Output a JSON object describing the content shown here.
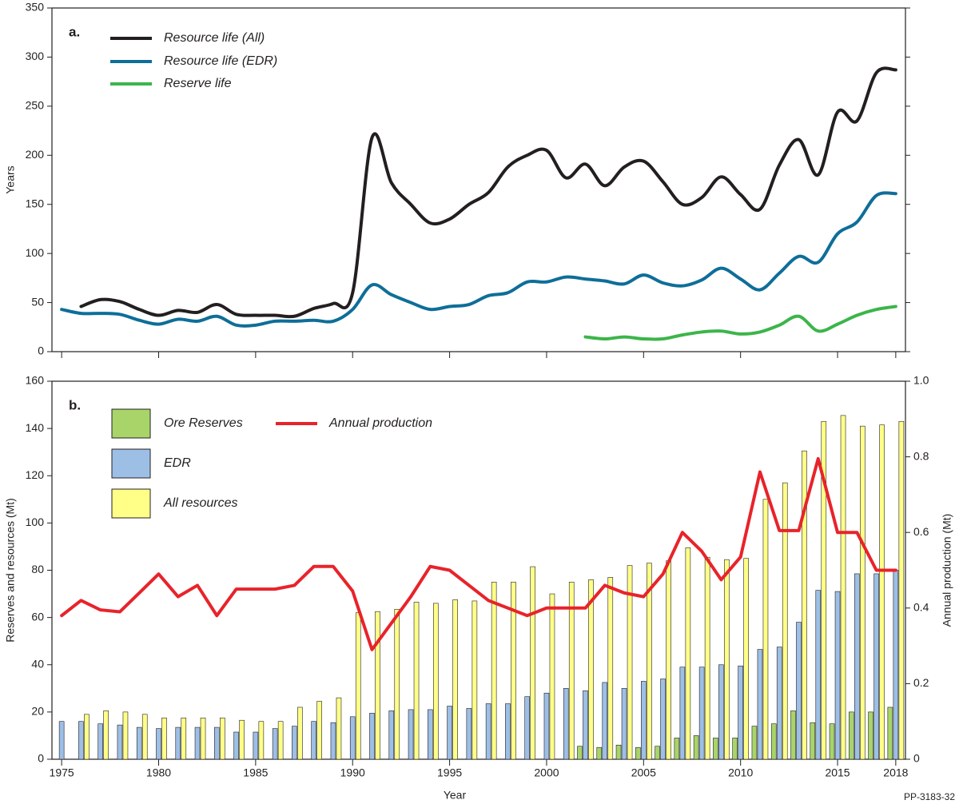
{
  "chart_data": [
    {
      "type": "line",
      "title": "a.",
      "ylabel": "Years",
      "x": [
        1975,
        1976,
        1977,
        1978,
        1979,
        1980,
        1981,
        1982,
        1983,
        1984,
        1985,
        1986,
        1987,
        1988,
        1989,
        1990,
        1991,
        1992,
        1993,
        1994,
        1995,
        1996,
        1997,
        1998,
        1999,
        2000,
        2001,
        2002,
        2003,
        2004,
        2005,
        2006,
        2007,
        2008,
        2009,
        2010,
        2011,
        2012,
        2013,
        2014,
        2015,
        2016,
        2017,
        2018
      ],
      "xlim": [
        1974.5,
        2018.5
      ],
      "ylim": [
        0,
        350
      ],
      "yticks": [
        0,
        50,
        100,
        150,
        200,
        250,
        300,
        350
      ],
      "series": [
        {
          "name": "Resource life (All)",
          "color": "#231f20",
          "values": [
            null,
            46,
            53,
            51,
            43,
            37,
            42,
            40,
            48,
            38,
            37,
            37,
            36,
            44,
            49,
            60,
            218,
            172,
            150,
            131,
            135,
            150,
            162,
            188,
            200,
            205,
            177,
            191,
            169,
            188,
            194,
            173,
            150,
            157,
            178,
            160,
            145,
            190,
            216,
            180,
            244,
            235,
            284,
            287
          ]
        },
        {
          "name": "Resource life (EDR)",
          "color": "#0e6e99",
          "values": [
            43,
            39,
            39,
            38,
            32,
            28,
            33,
            31,
            36,
            27,
            27,
            31,
            31,
            32,
            31,
            43,
            68,
            58,
            50,
            43,
            46,
            48,
            57,
            60,
            71,
            71,
            76,
            74,
            72,
            69,
            78,
            70,
            67,
            73,
            85,
            74,
            63,
            80,
            97,
            91,
            120,
            132,
            159,
            161
          ]
        },
        {
          "name": "Reserve life",
          "color": "#3cb54a",
          "values": [
            null,
            null,
            null,
            null,
            null,
            null,
            null,
            null,
            null,
            null,
            null,
            null,
            null,
            null,
            null,
            null,
            null,
            null,
            null,
            null,
            null,
            null,
            null,
            null,
            null,
            null,
            null,
            15,
            13,
            15,
            13,
            13,
            17,
            20,
            21,
            18,
            20,
            27,
            36,
            21,
            28,
            37,
            43,
            46
          ]
        }
      ]
    },
    {
      "type": "bar",
      "title": "b.",
      "xlabel": "Year",
      "ylabel": "Reserves and resources (Mt)",
      "y2label": "Annual production (Mt)",
      "x": [
        1975,
        1976,
        1977,
        1978,
        1979,
        1980,
        1981,
        1982,
        1983,
        1984,
        1985,
        1986,
        1987,
        1988,
        1989,
        1990,
        1991,
        1992,
        1993,
        1994,
        1995,
        1996,
        1997,
        1998,
        1999,
        2000,
        2001,
        2002,
        2003,
        2004,
        2005,
        2006,
        2007,
        2008,
        2009,
        2010,
        2011,
        2012,
        2013,
        2014,
        2015,
        2016,
        2017,
        2018
      ],
      "xlim": [
        1974.5,
        2018.5
      ],
      "xticks": [
        1975,
        1980,
        1985,
        1990,
        1995,
        2000,
        2005,
        2010,
        2015,
        2018
      ],
      "ylim": [
        0,
        160
      ],
      "yticks": [
        0,
        20,
        40,
        60,
        80,
        100,
        120,
        140,
        160
      ],
      "y2lim": [
        0,
        1
      ],
      "y2ticks": [
        0,
        0.2,
        0.4,
        0.6,
        0.8,
        {
          "value": 1,
          "label": "1.0"
        }
      ],
      "series": [
        {
          "name": "Ore Reserves",
          "color": "#a8d46a",
          "values": [
            null,
            null,
            null,
            null,
            null,
            null,
            null,
            null,
            null,
            null,
            null,
            null,
            null,
            null,
            null,
            null,
            null,
            null,
            null,
            null,
            null,
            null,
            null,
            null,
            null,
            null,
            null,
            5.5,
            5,
            6,
            5,
            5.5,
            9,
            10,
            9,
            9,
            14,
            15,
            20.5,
            15.5,
            15,
            20,
            20,
            22
          ]
        },
        {
          "name": "EDR",
          "color": "#9dbfe6",
          "values": [
            16,
            16,
            15,
            14.5,
            13.5,
            13,
            13.5,
            13.5,
            13.5,
            11.5,
            11.5,
            13,
            14,
            16,
            15.5,
            18,
            19.5,
            20.5,
            21,
            21,
            22.5,
            21.5,
            23.5,
            23.5,
            26.5,
            28,
            30,
            29,
            32.5,
            30,
            33,
            34,
            39,
            39,
            40,
            39.5,
            46.5,
            47.5,
            58,
            71.5,
            71,
            78.5,
            78.5,
            80
          ]
        },
        {
          "name": "All resources",
          "color": "#ffff88",
          "values": [
            null,
            19,
            20.5,
            20,
            19,
            17.5,
            17.5,
            17.5,
            17.5,
            16.5,
            16,
            16,
            22,
            24.5,
            26,
            62,
            62.5,
            63.5,
            66.5,
            66,
            67.5,
            67,
            75,
            75,
            81.5,
            70,
            75,
            76,
            77,
            82,
            83,
            84,
            89.5,
            85.5,
            84.5,
            85,
            110,
            117,
            130.5,
            143,
            145.5,
            141,
            141.5,
            143
          ]
        },
        {
          "name": "Annual production",
          "color": "#e8232a",
          "type": "line",
          "axis": "y2",
          "values": [
            0.38,
            0.42,
            0.395,
            0.39,
            0.44,
            0.49,
            0.43,
            0.46,
            0.38,
            0.45,
            0.45,
            0.45,
            0.46,
            0.51,
            0.51,
            0.445,
            0.29,
            0.36,
            0.43,
            0.51,
            0.5,
            0.46,
            0.42,
            0.4,
            0.38,
            0.4,
            0.4,
            0.4,
            0.46,
            0.44,
            0.43,
            0.49,
            0.6,
            0.55,
            0.475,
            0.535,
            0.76,
            0.605,
            0.605,
            0.795,
            0.6,
            0.6,
            0.5,
            0.5
          ]
        }
      ]
    }
  ],
  "figure_id": "PP-3183-32"
}
